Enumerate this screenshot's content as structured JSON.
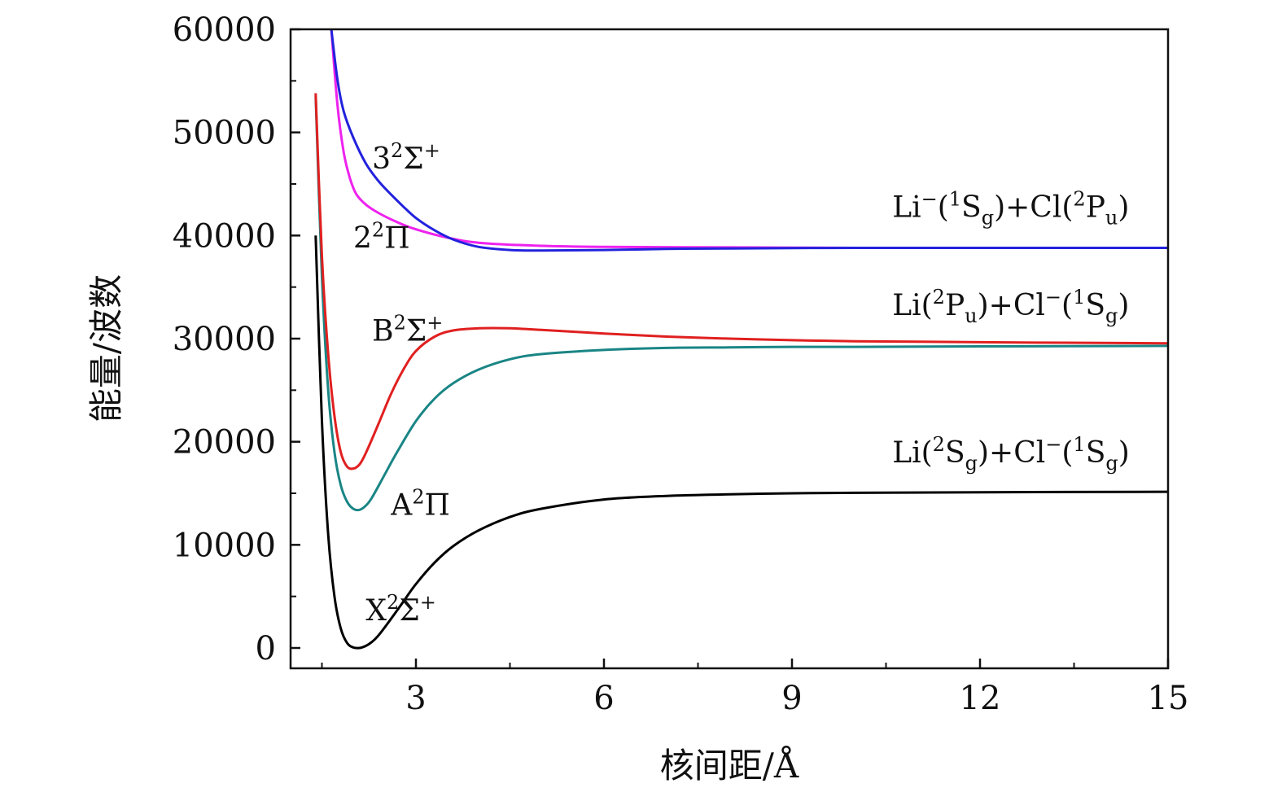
{
  "chart_data": {
    "type": "line",
    "xlabel": "核间距/Å",
    "ylabel": "能量/波数",
    "xlim": [
      1.0,
      15.0
    ],
    "ylim": [
      -2000,
      60000
    ],
    "xticks": [
      3,
      6,
      9,
      12,
      15
    ],
    "xtick_labels": [
      "3",
      "6",
      "9",
      "12",
      "15"
    ],
    "xminor": [
      1.5,
      4.5,
      7.5,
      10.5,
      13.5
    ],
    "yticks": [
      0,
      10000,
      20000,
      30000,
      40000,
      50000,
      60000
    ],
    "ytick_labels": [
      "0",
      "10000",
      "20000",
      "30000",
      "40000",
      "50000",
      "60000"
    ],
    "yminor": [
      5000,
      15000,
      25000,
      35000,
      45000,
      55000
    ],
    "grid": false,
    "legend": "none",
    "series": [
      {
        "name": "X²Σ⁺",
        "color": "#000000",
        "x": [
          1.4,
          1.5,
          1.6,
          1.7,
          1.8,
          1.9,
          2.0,
          2.1,
          2.2,
          2.3,
          2.4,
          2.6,
          2.8,
          3.0,
          3.3,
          3.6,
          4.0,
          4.5,
          5.0,
          6.0,
          7.0,
          8.0,
          9.0,
          10.0,
          12.0,
          15.0
        ],
        "y": [
          40000,
          22000,
          11000,
          5000,
          1900,
          500,
          50,
          0,
          200,
          600,
          1200,
          2800,
          4500,
          6200,
          8300,
          9900,
          11400,
          12700,
          13500,
          14400,
          14750,
          14900,
          15000,
          15050,
          15100,
          15150
        ]
      },
      {
        "name": "A²Π",
        "color": "#1a8585",
        "x": [
          1.4,
          1.5,
          1.6,
          1.7,
          1.8,
          1.9,
          2.0,
          2.1,
          2.2,
          2.3,
          2.5,
          2.7,
          3.0,
          3.3,
          3.6,
          4.0,
          4.5,
          5.0,
          6.0,
          7.0,
          8.0,
          9.0,
          10.0,
          12.0,
          15.0
        ],
        "y": [
          53500,
          36000,
          25000,
          19000,
          15800,
          14200,
          13500,
          13400,
          13800,
          14600,
          16800,
          19000,
          22000,
          24200,
          25700,
          27000,
          28000,
          28500,
          28900,
          29100,
          29150,
          29200,
          29200,
          29250,
          29300
        ]
      },
      {
        "name": "B²Σ⁺",
        "color": "#e02020",
        "x": [
          1.4,
          1.5,
          1.6,
          1.7,
          1.8,
          1.9,
          2.0,
          2.1,
          2.2,
          2.4,
          2.6,
          2.8,
          3.0,
          3.3,
          3.6,
          4.0,
          4.5,
          5.0,
          6.0,
          7.0,
          8.0,
          9.0,
          10.0,
          12.0,
          15.0
        ],
        "y": [
          53800,
          38000,
          28500,
          22500,
          19000,
          17600,
          17400,
          17800,
          18900,
          21700,
          24600,
          27000,
          28800,
          30200,
          30800,
          31000,
          31000,
          30850,
          30500,
          30200,
          30000,
          29850,
          29750,
          29650,
          29550
        ]
      },
      {
        "name": "2²Π",
        "color": "#ee22ee",
        "x": [
          1.65,
          1.75,
          1.85,
          1.95,
          2.05,
          2.2,
          2.4,
          2.7,
          3.0,
          3.5,
          4.0,
          5.0,
          6.0,
          8.0,
          10.0,
          12.0,
          15.0
        ],
        "y": [
          60000,
          52500,
          48000,
          45500,
          44000,
          43000,
          42200,
          41300,
          40600,
          39800,
          39300,
          39000,
          38900,
          38850,
          38800,
          38800,
          38800
        ]
      },
      {
        "name": "3²Σ⁺",
        "color": "#2222dd",
        "x": [
          1.65,
          1.75,
          1.85,
          2.0,
          2.2,
          2.4,
          2.6,
          2.8,
          3.0,
          3.3,
          3.6,
          4.0,
          4.5,
          5.0,
          6.0,
          7.0,
          8.0,
          10.0,
          12.0,
          15.0
        ],
        "y": [
          60000,
          55000,
          52000,
          49500,
          47000,
          45300,
          44000,
          42800,
          41700,
          40500,
          39600,
          38900,
          38600,
          38550,
          38600,
          38700,
          38750,
          38800,
          38800,
          38800
        ]
      }
    ],
    "annotations": [
      {
        "name": "x2sigma",
        "base": "X",
        "sup": "2",
        "tail": "Σ",
        "tail_sup": "+",
        "x": 2.2,
        "y": 2700,
        "color": "#111111"
      },
      {
        "name": "a2pi",
        "base": "A",
        "sup": "2",
        "tail": "Π",
        "tail_sup": "",
        "x": 2.6,
        "y": 12900,
        "color": "#111111"
      },
      {
        "name": "b2sigma",
        "base": "B",
        "sup": "2",
        "tail": "Σ",
        "tail_sup": "+",
        "x": 2.3,
        "y": 29800,
        "color": "#111111"
      },
      {
        "name": "2-2pi",
        "base": "2",
        "sup": "2",
        "tail": "Π",
        "tail_sup": "",
        "x": 2.0,
        "y": 38800,
        "color": "#111111"
      },
      {
        "name": "3-2sigma",
        "base": "3",
        "sup": "2",
        "tail": "Σ",
        "tail_sup": "+",
        "x": 2.3,
        "y": 46500,
        "color": "#111111"
      }
    ],
    "asymptote_labels": [
      {
        "name": "li-minus-cl",
        "text": "Li⁻(¹Sg)+Cl(²Pu)",
        "parts": [
          [
            "Li",
            ""
          ],
          [
            "−",
            "sup"
          ],
          [
            "(",
            ""
          ],
          [
            "1",
            "sup"
          ],
          [
            "S",
            ""
          ],
          [
            "g",
            "sub"
          ],
          [
            ")+Cl(",
            ""
          ],
          [
            "2",
            "sup"
          ],
          [
            "P",
            ""
          ],
          [
            "u",
            "sub"
          ],
          [
            ")",
            ""
          ]
        ],
        "x": 10.6,
        "y": 41800
      },
      {
        "name": "li2p-cl-minus",
        "text": "Li(²Pu)+Cl⁻(¹Sg)",
        "parts": [
          [
            "Li(",
            ""
          ],
          [
            "2",
            "sup"
          ],
          [
            "P",
            ""
          ],
          [
            "u",
            "sub"
          ],
          [
            ")+Cl",
            ""
          ],
          [
            "−",
            "sup"
          ],
          [
            "(",
            ""
          ],
          [
            "1",
            "sup"
          ],
          [
            "S",
            ""
          ],
          [
            "g",
            "sub"
          ],
          [
            ")",
            ""
          ]
        ],
        "x": 10.6,
        "y": 32300
      },
      {
        "name": "li2s-cl-minus",
        "text": "Li(²Sg)+Cl⁻(¹Sg)",
        "parts": [
          [
            "Li(",
            ""
          ],
          [
            "2",
            "sup"
          ],
          [
            "S",
            ""
          ],
          [
            "g",
            "sub"
          ],
          [
            ")+Cl",
            ""
          ],
          [
            "−",
            "sup"
          ],
          [
            "(",
            ""
          ],
          [
            "1",
            "sup"
          ],
          [
            "S",
            ""
          ],
          [
            "g",
            "sub"
          ],
          [
            ")",
            ""
          ]
        ],
        "x": 10.6,
        "y": 18000
      }
    ]
  }
}
